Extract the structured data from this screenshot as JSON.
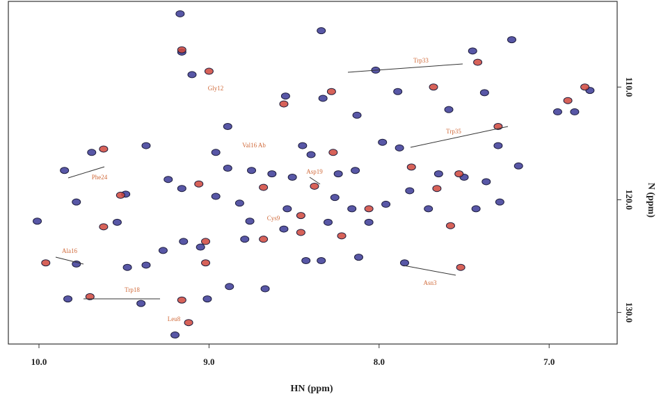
{
  "chart_data": {
    "type": "scatter",
    "x_label": "HN (ppm)",
    "y_label": "N (ppm)",
    "xlim": [
      10.18,
      6.6
    ],
    "ylim": [
      102.4,
      132.8
    ],
    "xticks": [
      {
        "value": 10,
        "label": "10.0"
      },
      {
        "value": 9,
        "label": "9.0"
      },
      {
        "value": 8,
        "label": "8.0"
      },
      {
        "value": 7,
        "label": "7.0"
      }
    ],
    "yticks": [
      {
        "value": 110,
        "label": "110.0"
      },
      {
        "value": 120,
        "label": "120.0"
      },
      {
        "value": 130,
        "label": "130.0"
      }
    ],
    "annotations": [
      "Gly12",
      "Trp33",
      "Trp35",
      "Phe24",
      "Val16 Ab",
      "Asp19",
      "Cys9",
      "Ala16",
      "Trp18",
      "Leu8",
      "Asn3"
    ],
    "series": [
      {
        "color": "#3b3a96",
        "x": [
          9.17,
          8.34,
          9.16,
          9.1,
          8.02,
          7.45,
          7.22,
          7.89,
          8.55,
          8.33,
          7.59,
          6.95,
          6.85,
          6.76,
          7.38,
          8.13,
          8.89,
          9.37,
          9.69,
          9.85,
          8.45,
          8.4,
          7.98,
          7.88,
          7.3,
          8.89,
          8.75,
          8.63,
          8.51,
          8.24,
          8.14,
          7.65,
          7.5,
          7.37,
          7.18,
          9.24,
          9.49,
          9.78,
          10.01,
          9.16,
          8.96,
          8.82,
          8.54,
          8.26,
          8.16,
          8.3,
          8.06,
          7.96,
          7.82,
          7.71,
          7.43,
          7.29,
          9.15,
          9.05,
          9.27,
          9.54,
          8.79,
          8.43,
          8.34,
          8.12,
          7.85,
          9.48,
          9.37,
          9.78,
          9.83,
          9.4,
          9.01,
          8.88,
          8.67,
          9.2,
          8.76,
          8.56,
          8.96
        ],
        "values": [
          103.5,
          105.0,
          106.9,
          108.9,
          108.5,
          106.8,
          105.8,
          110.4,
          110.8,
          111.0,
          112.0,
          112.2,
          112.2,
          110.3,
          110.5,
          112.5,
          113.5,
          115.2,
          115.8,
          117.4,
          115.2,
          116.0,
          114.9,
          115.4,
          115.2,
          117.2,
          117.4,
          117.7,
          118.0,
          117.7,
          117.4,
          117.7,
          118.0,
          118.4,
          117.0,
          118.2,
          119.5,
          120.2,
          121.9,
          119.0,
          119.7,
          120.3,
          120.8,
          119.8,
          120.8,
          122.0,
          122.0,
          120.4,
          119.2,
          120.8,
          120.8,
          120.2,
          123.7,
          124.2,
          124.5,
          122.0,
          123.5,
          125.4,
          125.4,
          125.1,
          125.6,
          126.0,
          125.8,
          125.7,
          128.8,
          129.2,
          128.8,
          127.7,
          127.9,
          132.0,
          121.9,
          122.6,
          115.8
        ]
      },
      {
        "color": "#d0463c",
        "x": [
          9.16,
          9.0,
          8.56,
          7.68,
          7.3,
          7.42,
          6.89,
          6.79,
          9.62,
          9.06,
          9.52,
          9.62,
          9.96,
          8.68,
          8.68,
          8.46,
          8.22,
          8.46,
          7.81,
          7.66,
          7.53,
          7.58,
          7.52,
          9.7,
          9.16,
          9.02,
          9.02,
          9.12,
          8.27,
          8.38,
          8.28,
          8.06
        ],
        "values": [
          106.7,
          108.6,
          111.5,
          110.0,
          113.5,
          107.8,
          111.2,
          110.0,
          115.5,
          118.6,
          119.6,
          122.4,
          125.6,
          123.5,
          118.9,
          122.9,
          123.2,
          121.4,
          117.1,
          119.0,
          117.7,
          122.3,
          126.0,
          128.6,
          128.9,
          123.7,
          125.6,
          130.9,
          115.8,
          118.8,
          110.4,
          120.8
        ]
      }
    ]
  }
}
